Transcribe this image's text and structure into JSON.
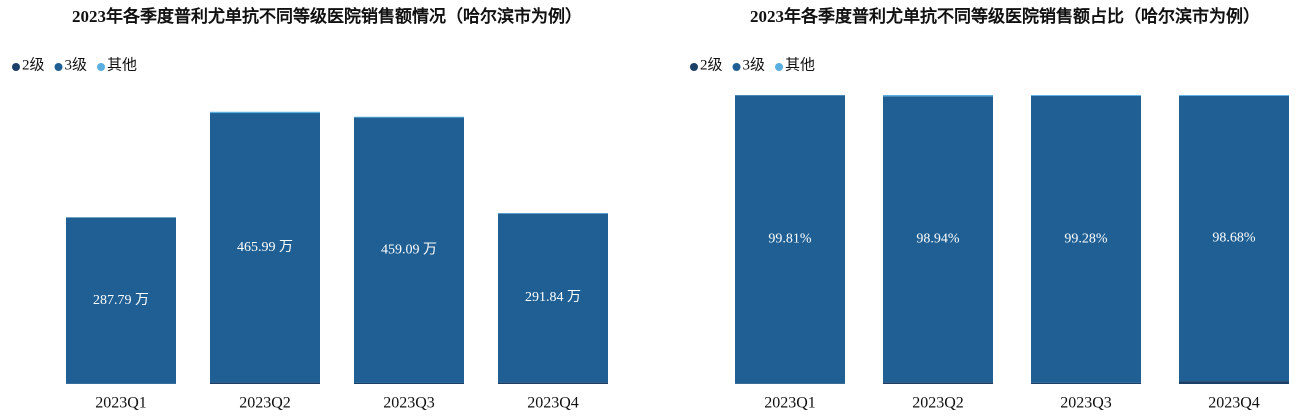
{
  "chart_data": [
    {
      "type": "stacked_bar",
      "title": "2023年各季度普利尤单抗不同等级医院销售额情况（哈尔滨市为例）",
      "categories": [
        "2023Q1",
        "2023Q2",
        "2023Q3",
        "2023Q4"
      ],
      "series": [
        {
          "name": "2级",
          "color": "#1b3f66",
          "values": [
            0.29,
            2.83,
            1.85,
            2.96
          ]
        },
        {
          "name": "3级",
          "color": "#1f5f93",
          "values": [
            287.79,
            465.99,
            459.09,
            291.84
          ],
          "value_labels": [
            "287.79 万",
            "465.99 万",
            "459.09 万",
            "291.84 万"
          ]
        },
        {
          "name": "其他",
          "color": "#5aaee0",
          "values": [
            0.26,
            2.16,
            1.48,
            0.94
          ]
        }
      ],
      "ylim": [
        0,
        500
      ]
    },
    {
      "type": "stacked_bar",
      "title": "2023年各季度普利尤单抗不同等级医院销售额占比（哈尔滨市为例）",
      "categories": [
        "2023Q1",
        "2023Q2",
        "2023Q3",
        "2023Q4"
      ],
      "series": [
        {
          "name": "2级",
          "color": "#1b3f66",
          "values": [
            0.1,
            0.6,
            0.4,
            1.0
          ]
        },
        {
          "name": "3级",
          "color": "#1f5f93",
          "values": [
            99.81,
            98.94,
            99.28,
            98.68
          ],
          "value_labels": [
            "99.81%",
            "98.94%",
            "99.28%",
            "98.68%"
          ]
        },
        {
          "name": "其他",
          "color": "#5aaee0",
          "values": [
            0.09,
            0.46,
            0.32,
            0.32
          ]
        }
      ],
      "ylim": [
        0,
        100
      ]
    }
  ]
}
